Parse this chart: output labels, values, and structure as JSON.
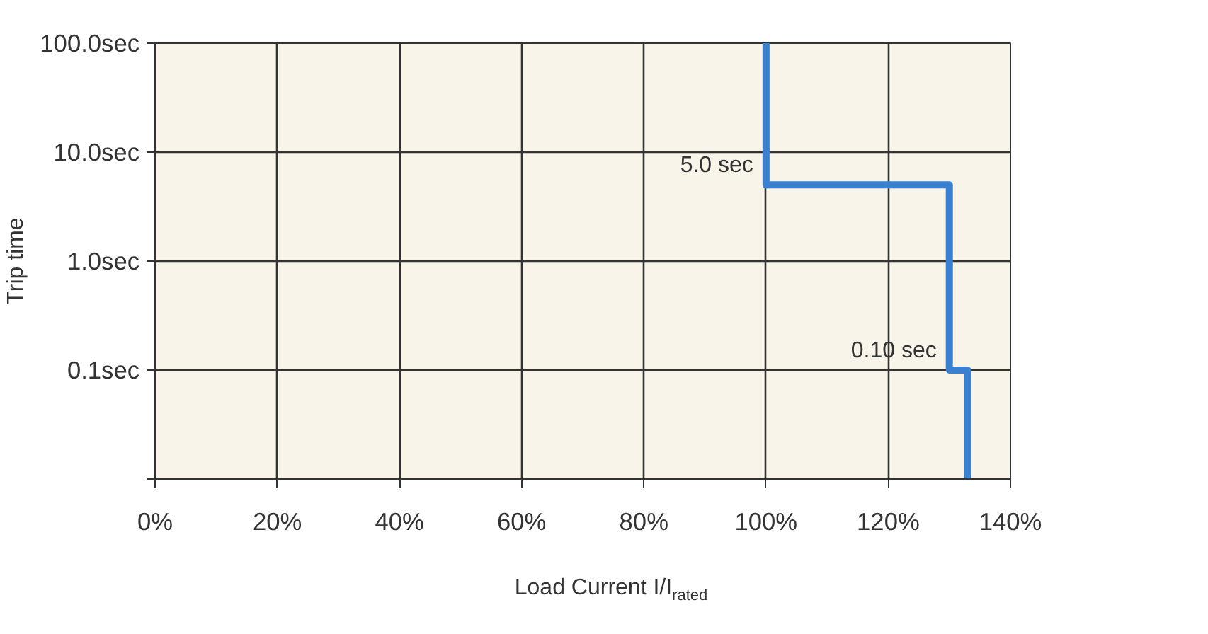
{
  "chart_data": {
    "type": "line",
    "xlabel": "Load Current I/I$_{rated}$",
    "ylabel": "Trip time",
    "series": [
      {
        "x": [
          100,
          100,
          130,
          130,
          133,
          133
        ],
        "values": [
          100,
          5,
          5,
          0.1,
          0.1,
          0.01
        ],
        "color": "#3a7fd0"
      }
    ],
    "xlim": [
      0,
      140
    ],
    "xticks": [
      {
        "value": 0,
        "label": "0%"
      },
      {
        "value": 20,
        "label": "20%"
      },
      {
        "value": 40,
        "label": "40%"
      },
      {
        "value": 60,
        "label": "60%"
      },
      {
        "value": 80,
        "label": "80%"
      },
      {
        "value": 100,
        "label": "100%"
      },
      {
        "value": 120,
        "label": "120%"
      },
      {
        "value": 140,
        "label": "140%"
      }
    ],
    "ylim": [
      0.01,
      100
    ],
    "yticks": [
      {
        "value": 0.01,
        "label": null
      },
      {
        "value": 0.1,
        "label": "0.1sec"
      },
      {
        "value": 1,
        "label": "1.0sec"
      },
      {
        "value": 10,
        "label": "10.0sec"
      },
      {
        "value": 100,
        "label": "100.0sec"
      }
    ],
    "log": "y",
    "grid": true,
    "marker": "none",
    "line_style": "solid",
    "annotations": [
      {
        "text": "5.0 sec",
        "x": 100,
        "y": 5
      },
      {
        "text": "0.10 sec",
        "x": 130,
        "y": 0.1
      }
    ]
  }
}
